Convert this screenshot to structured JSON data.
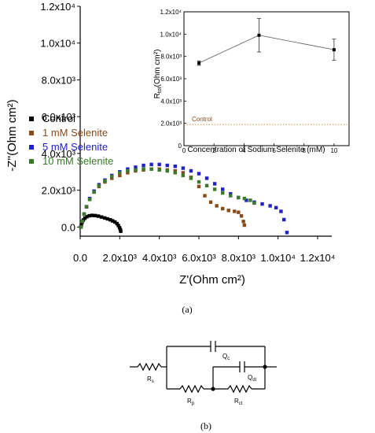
{
  "chart_data": [
    {
      "type": "scatter",
      "title": "",
      "xlabel": "Z'(Ohm cm²)",
      "ylabel": "-Z''(Ohm cm²)",
      "xlim": [
        0,
        12000
      ],
      "ylim": [
        -500,
        12000
      ],
      "x_ticks": [
        "0.0",
        "2.0x10³",
        "4.0x10³",
        "6.0x10³",
        "8.0x10³",
        "1.0x10⁴",
        "1.2x10⁴"
      ],
      "x_tick_values": [
        0,
        2000,
        4000,
        6000,
        8000,
        10000,
        12000
      ],
      "y_ticks": [
        "0.0",
        "2.0x10³",
        "4.0x10³",
        "6.0x10³",
        "8.0x10³",
        "1.0x10⁴",
        "1.2x10⁴"
      ],
      "y_tick_values": [
        0,
        2000,
        4000,
        6000,
        8000,
        10000,
        12000
      ],
      "grid": false,
      "legend_position": "middle-left",
      "series": [
        {
          "name": "Control",
          "color": "#000000",
          "x": [
            30,
            60,
            100,
            160,
            240,
            340,
            460,
            600,
            760,
            920,
            1080,
            1240,
            1380,
            1520,
            1640,
            1760,
            1860,
            1930,
            1990,
            2030,
            2050
          ],
          "y": [
            0,
            120,
            260,
            380,
            480,
            560,
            610,
            630,
            620,
            590,
            540,
            490,
            440,
            390,
            330,
            270,
            180,
            80,
            -40,
            -140,
            -230
          ]
        },
        {
          "name": "1 mM Selenite",
          "color": "#8B4A1A",
          "x": [
            40,
            100,
            200,
            320,
            480,
            700,
            950,
            1250,
            1600,
            2000,
            2400,
            2800,
            3200,
            3600,
            4000,
            4400,
            4800,
            5200,
            5600,
            6000,
            6300,
            6600,
            6900,
            7200,
            7500,
            7800,
            8000,
            8150,
            8250,
            8300
          ],
          "y": [
            0,
            300,
            700,
            1100,
            1500,
            1900,
            2200,
            2450,
            2650,
            2800,
            2950,
            3050,
            3100,
            3150,
            3150,
            3100,
            3050,
            2950,
            2700,
            2200,
            1700,
            1350,
            1150,
            1000,
            900,
            850,
            800,
            600,
            300,
            100
          ]
        },
        {
          "name": "5 mM Selenite",
          "color": "#2020CC",
          "x": [
            40,
            100,
            200,
            320,
            480,
            700,
            950,
            1250,
            1600,
            2000,
            2400,
            2800,
            3200,
            3600,
            4000,
            4400,
            4800,
            5200,
            5600,
            6000,
            6400,
            6800,
            7200,
            7600,
            8000,
            8400,
            8800,
            9200,
            9600,
            9900,
            10150,
            10300,
            10450
          ],
          "y": [
            0,
            300,
            700,
            1100,
            1550,
            1950,
            2300,
            2550,
            2800,
            3000,
            3150,
            3250,
            3350,
            3400,
            3400,
            3350,
            3300,
            3200,
            3050,
            2900,
            2650,
            2350,
            2050,
            1800,
            1600,
            1450,
            1350,
            1250,
            1150,
            1050,
            850,
            400,
            -300
          ]
        },
        {
          "name": "10 mM Selenite",
          "color": "#3A7A28",
          "x": [
            40,
            100,
            200,
            320,
            480,
            700,
            950,
            1250,
            1600,
            2000,
            2400,
            2800,
            3200,
            3600,
            4000,
            4400,
            4800,
            5200,
            5600,
            6000,
            6400,
            6800,
            7200,
            7600,
            8000,
            8300,
            8600,
            8800
          ],
          "y": [
            0,
            300,
            700,
            1100,
            1500,
            1900,
            2250,
            2500,
            2750,
            2950,
            3050,
            3100,
            3150,
            3150,
            3100,
            3050,
            2950,
            2800,
            2650,
            2450,
            2250,
            2050,
            1850,
            1700,
            1600,
            1550,
            1450,
            1300
          ]
        }
      ]
    },
    {
      "type": "scatter",
      "title": "",
      "xlabel": "Concentration of Sodium Selenite (mM)",
      "ylabel": "R",
      "ylabel_sub": "tot",
      "ylabel_unit": "(Ohm cm²)",
      "xlim": [
        0,
        11
      ],
      "ylim": [
        0,
        12000
      ],
      "x_ticks": [
        "0",
        "2",
        "4",
        "6",
        "8",
        "10"
      ],
      "x_tick_values": [
        0,
        2,
        4,
        6,
        8,
        10
      ],
      "y_ticks": [
        "0",
        "2.0x10³",
        "4.0x10³",
        "6.0x10³",
        "8.0x10³",
        "1.0x10⁴",
        "1.2x10⁴"
      ],
      "y_tick_values": [
        0,
        2000,
        4000,
        6000,
        8000,
        10000,
        12000
      ],
      "points": {
        "x": [
          1,
          5,
          10
        ],
        "y": [
          7400,
          9900,
          8600
        ],
        "err": [
          200,
          1500,
          950
        ]
      },
      "reference_line": {
        "label": "Control",
        "y": 1900,
        "color": "#D98C3C"
      }
    }
  ],
  "figure_labels": {
    "a": "(a)",
    "b": "(b)"
  },
  "circuit": {
    "labels": {
      "rs": "R",
      "rs_sub": "s",
      "rp": "R",
      "rp_sub": "p",
      "rct": "R",
      "rct_sub": "ct",
      "qc": "Q",
      "qc_sub": "c",
      "qdl": "Q",
      "qdl_sub": "dl"
    }
  }
}
